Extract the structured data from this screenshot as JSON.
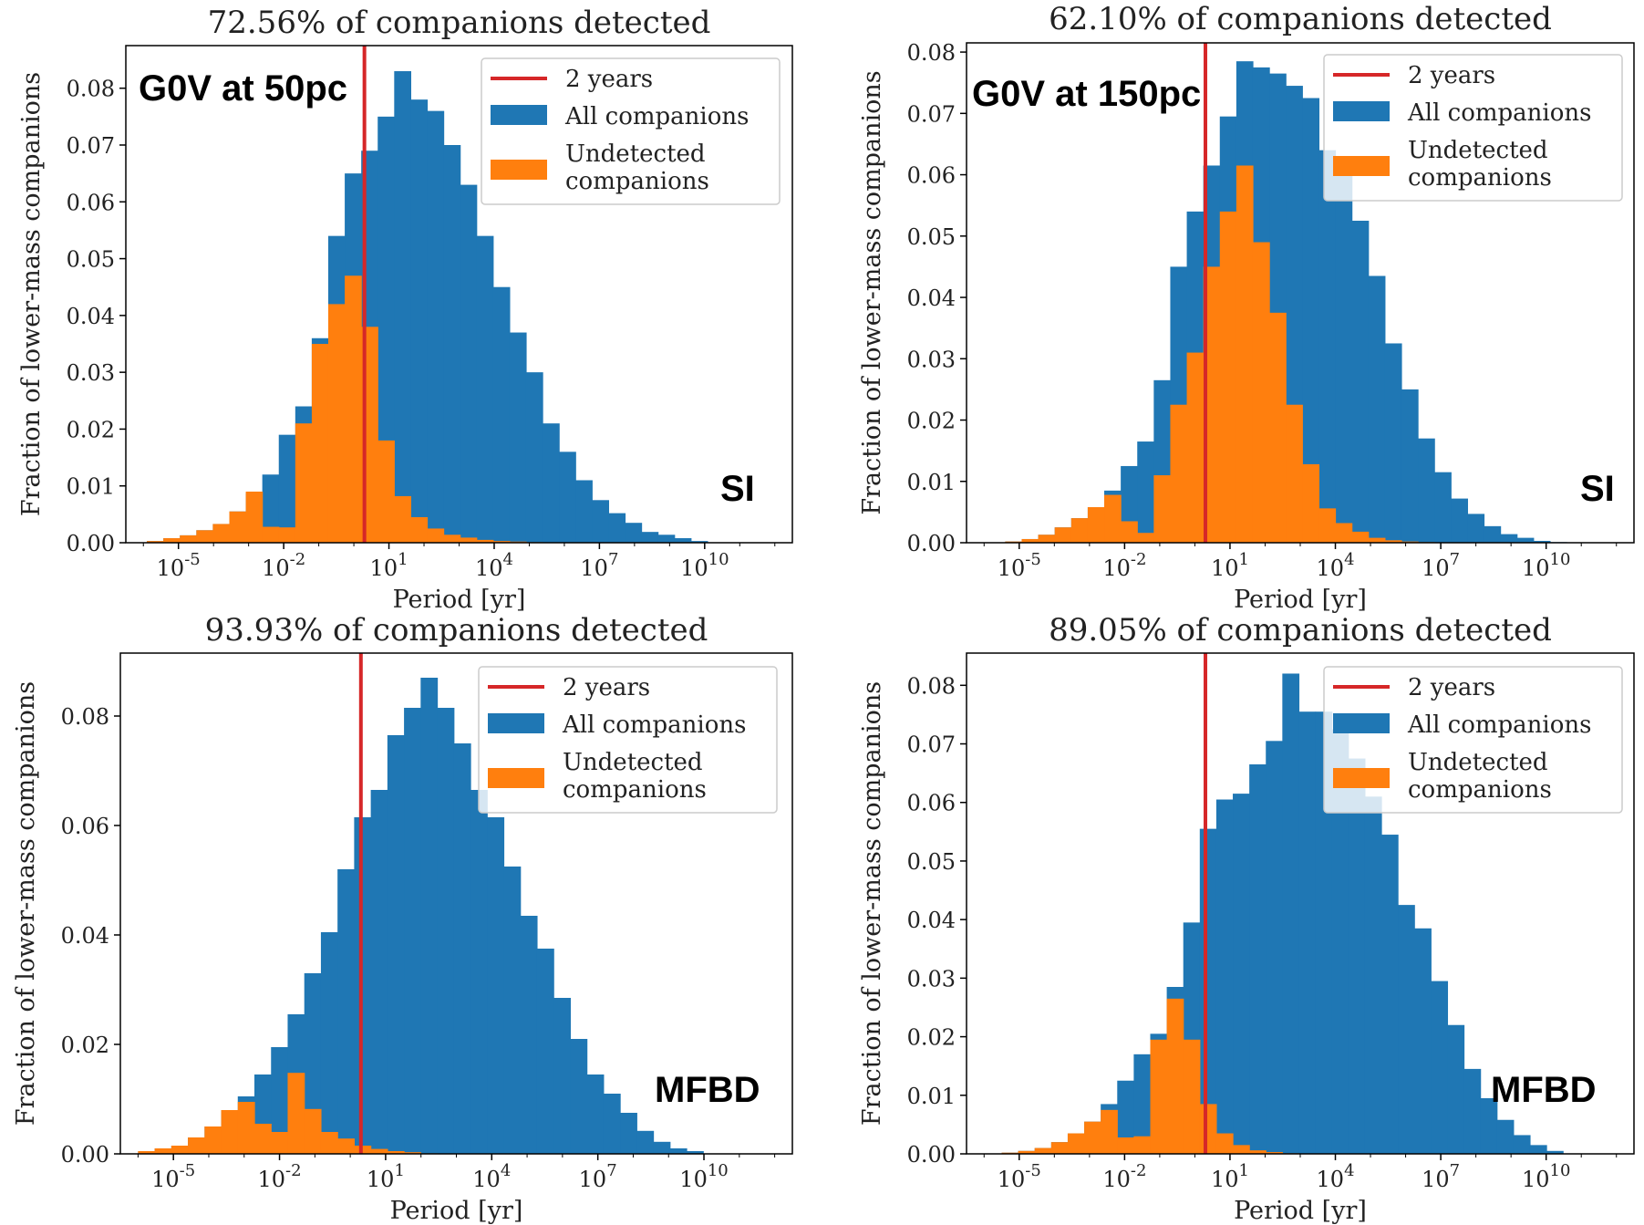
{
  "colors": {
    "all": "#1f77b4",
    "undetected": "#ff7f0e",
    "line": "#d62728"
  },
  "legend": {
    "line_label": "2 years",
    "all_label": "All companions",
    "undetected_label_1": "Undetected",
    "undetected_label_2": "companions"
  },
  "chart_data": [
    {
      "type": "bar",
      "title": "72.56% of companions detected",
      "xlabel": "Period [yr]",
      "ylabel": "Fraction of lower-mass companions",
      "annotation": "G0V at 50pc",
      "method": "SI",
      "x_scale": "log10",
      "xlim_log10": [
        -6.5,
        12.5
      ],
      "ylim": [
        0,
        0.0875
      ],
      "yticks": [
        0,
        0.01,
        0.02,
        0.03,
        0.04,
        0.05,
        0.06,
        0.07,
        0.08
      ],
      "ytick_labels": [
        "0.00",
        "0.01",
        "0.02",
        "0.03",
        "0.04",
        "0.05",
        "0.06",
        "0.07",
        "0.08"
      ],
      "xtick_exponents": [
        "-5",
        "-2",
        "1",
        "4",
        "7",
        "10"
      ],
      "xticks_log10": [
        -5,
        -2,
        1,
        4,
        7,
        10
      ],
      "bin_start_log10": -5.9,
      "bin_width_log10": 0.47,
      "two_years_log10": 0.301,
      "series": [
        {
          "name": "All companions",
          "values": [
            0.0003,
            0.0008,
            0.0013,
            0.0022,
            0.0033,
            0.0055,
            0.0087,
            0.012,
            0.019,
            0.024,
            0.036,
            0.054,
            0.065,
            0.069,
            0.075,
            0.083,
            0.078,
            0.076,
            0.07,
            0.063,
            0.054,
            0.045,
            0.037,
            0.03,
            0.021,
            0.016,
            0.011,
            0.0075,
            0.0052,
            0.0035,
            0.0019,
            0.0014,
            0.0008,
            0.0003
          ]
        },
        {
          "name": "Undetected companions",
          "values": [
            0.0003,
            0.0008,
            0.0013,
            0.0022,
            0.0033,
            0.0055,
            0.009,
            0.0028,
            0.0027,
            0.021,
            0.035,
            0.042,
            0.047,
            0.038,
            0.018,
            0.0082,
            0.0045,
            0.0025,
            0.0014,
            0.0009,
            0.0005,
            0.0003,
            0.0002,
            0.0001,
            0,
            0,
            0,
            0,
            0,
            0,
            0,
            0,
            0,
            0
          ]
        }
      ]
    },
    {
      "type": "bar",
      "title": "62.10% of companions detected",
      "xlabel": "Period [yr]",
      "ylabel": "Fraction of lower-mass companions",
      "annotation": "G0V at 150pc",
      "method": "SI",
      "x_scale": "log10",
      "xlim_log10": [
        -6.5,
        12.5
      ],
      "ylim": [
        0,
        0.0815
      ],
      "yticks": [
        0,
        0.01,
        0.02,
        0.03,
        0.04,
        0.05,
        0.06,
        0.07,
        0.08
      ],
      "ytick_labels": [
        "0.00",
        "0.01",
        "0.02",
        "0.03",
        "0.04",
        "0.05",
        "0.06",
        "0.07",
        "0.08"
      ],
      "xtick_exponents": [
        "-5",
        "-2",
        "1",
        "4",
        "7",
        "10"
      ],
      "xticks_log10": [
        -5,
        -2,
        1,
        4,
        7,
        10
      ],
      "bin_start_log10": -5.4,
      "bin_width_log10": 0.47,
      "two_years_log10": 0.301,
      "series": [
        {
          "name": "All companions",
          "values": [
            0.0002,
            0.0006,
            0.0013,
            0.0025,
            0.004,
            0.0058,
            0.0085,
            0.0125,
            0.0165,
            0.0265,
            0.045,
            0.054,
            0.0615,
            0.0695,
            0.0785,
            0.0775,
            0.0765,
            0.0745,
            0.0725,
            0.064,
            0.0615,
            0.0525,
            0.0435,
            0.0325,
            0.025,
            0.017,
            0.0115,
            0.0072,
            0.0047,
            0.0027,
            0.0014,
            0.0008,
            0.0003,
            0.0001
          ]
        },
        {
          "name": "Undetected companions",
          "values": [
            0.0002,
            0.0006,
            0.0013,
            0.0025,
            0.004,
            0.0058,
            0.0078,
            0.0035,
            0.0016,
            0.011,
            0.0225,
            0.031,
            0.045,
            0.054,
            0.0615,
            0.049,
            0.0375,
            0.0225,
            0.0128,
            0.0056,
            0.0032,
            0.0018,
            0.0008,
            0.0004,
            0.0002,
            0.0001,
            0,
            0,
            0,
            0,
            0,
            0,
            0,
            0
          ]
        }
      ]
    },
    {
      "type": "bar",
      "title": "93.93% of companions detected",
      "xlabel": "Period [yr]",
      "ylabel": "Fraction of lower-mass companions",
      "annotation": "",
      "method": "MFBD",
      "x_scale": "log10",
      "xlim_log10": [
        -6.5,
        12.5
      ],
      "ylim": [
        0,
        0.0915
      ],
      "yticks": [
        0,
        0.02,
        0.04,
        0.06,
        0.08
      ],
      "ytick_labels": [
        "0.00",
        "0.02",
        "0.04",
        "0.06",
        "0.08"
      ],
      "xtick_exponents": [
        "-5",
        "-2",
        "1",
        "4",
        "7",
        "10"
      ],
      "xticks_log10": [
        -5,
        -2,
        1,
        4,
        7,
        10
      ],
      "bin_start_log10": -6.0,
      "bin_width_log10": 0.47,
      "two_years_log10": 0.301,
      "series": [
        {
          "name": "All companions",
          "values": [
            0.0005,
            0.001,
            0.0015,
            0.003,
            0.005,
            0.008,
            0.0105,
            0.0145,
            0.0195,
            0.0255,
            0.033,
            0.0405,
            0.052,
            0.0615,
            0.0665,
            0.0765,
            0.0815,
            0.087,
            0.0815,
            0.075,
            0.0665,
            0.0615,
            0.0525,
            0.0435,
            0.0375,
            0.0285,
            0.021,
            0.0145,
            0.011,
            0.0075,
            0.0042,
            0.0022,
            0.001,
            0.0005
          ]
        },
        {
          "name": "Undetected companions",
          "values": [
            0.0005,
            0.001,
            0.0015,
            0.003,
            0.005,
            0.008,
            0.0095,
            0.0055,
            0.004,
            0.0148,
            0.0082,
            0.004,
            0.0028,
            0.0015,
            0.0009,
            0.0005,
            0.0003,
            0.0001,
            0,
            0,
            0,
            0,
            0,
            0,
            0,
            0,
            0,
            0,
            0,
            0,
            0,
            0,
            0,
            0
          ]
        }
      ]
    },
    {
      "type": "bar",
      "title": "89.05% of companions detected",
      "xlabel": "Period [yr]",
      "ylabel": "Fraction of lower-mass companions",
      "annotation": "",
      "method": "MFBD",
      "x_scale": "log10",
      "xlim_log10": [
        -6.5,
        12.5
      ],
      "ylim": [
        0,
        0.0855
      ],
      "yticks": [
        0,
        0.01,
        0.02,
        0.03,
        0.04,
        0.05,
        0.06,
        0.07,
        0.08
      ],
      "ytick_labels": [
        "0.00",
        "0.01",
        "0.02",
        "0.03",
        "0.04",
        "0.05",
        "0.06",
        "0.07",
        "0.08"
      ],
      "xtick_exponents": [
        "-5",
        "-2",
        "1",
        "4",
        "7",
        "10"
      ],
      "xticks_log10": [
        -5,
        -2,
        1,
        4,
        7,
        10
      ],
      "bin_start_log10": -5.5,
      "bin_width_log10": 0.47,
      "two_years_log10": 0.301,
      "series": [
        {
          "name": "All companions",
          "values": [
            0.0002,
            0.0005,
            0.001,
            0.002,
            0.0035,
            0.0055,
            0.0085,
            0.0125,
            0.017,
            0.0205,
            0.0285,
            0.0395,
            0.0555,
            0.0605,
            0.0615,
            0.0665,
            0.0705,
            0.082,
            0.0755,
            0.0755,
            0.0725,
            0.0675,
            0.061,
            0.0545,
            0.0425,
            0.0385,
            0.0295,
            0.022,
            0.0145,
            0.0095,
            0.0058,
            0.0032,
            0.0015,
            0.0005
          ]
        },
        {
          "name": "Undetected companions",
          "values": [
            0.0002,
            0.0005,
            0.001,
            0.002,
            0.0035,
            0.0055,
            0.0075,
            0.0028,
            0.003,
            0.0195,
            0.0265,
            0.0195,
            0.0085,
            0.0035,
            0.0015,
            0.0006,
            0.0003,
            0.0001,
            0,
            0,
            0,
            0,
            0,
            0,
            0,
            0,
            0,
            0,
            0,
            0,
            0,
            0,
            0,
            0
          ]
        }
      ]
    }
  ]
}
